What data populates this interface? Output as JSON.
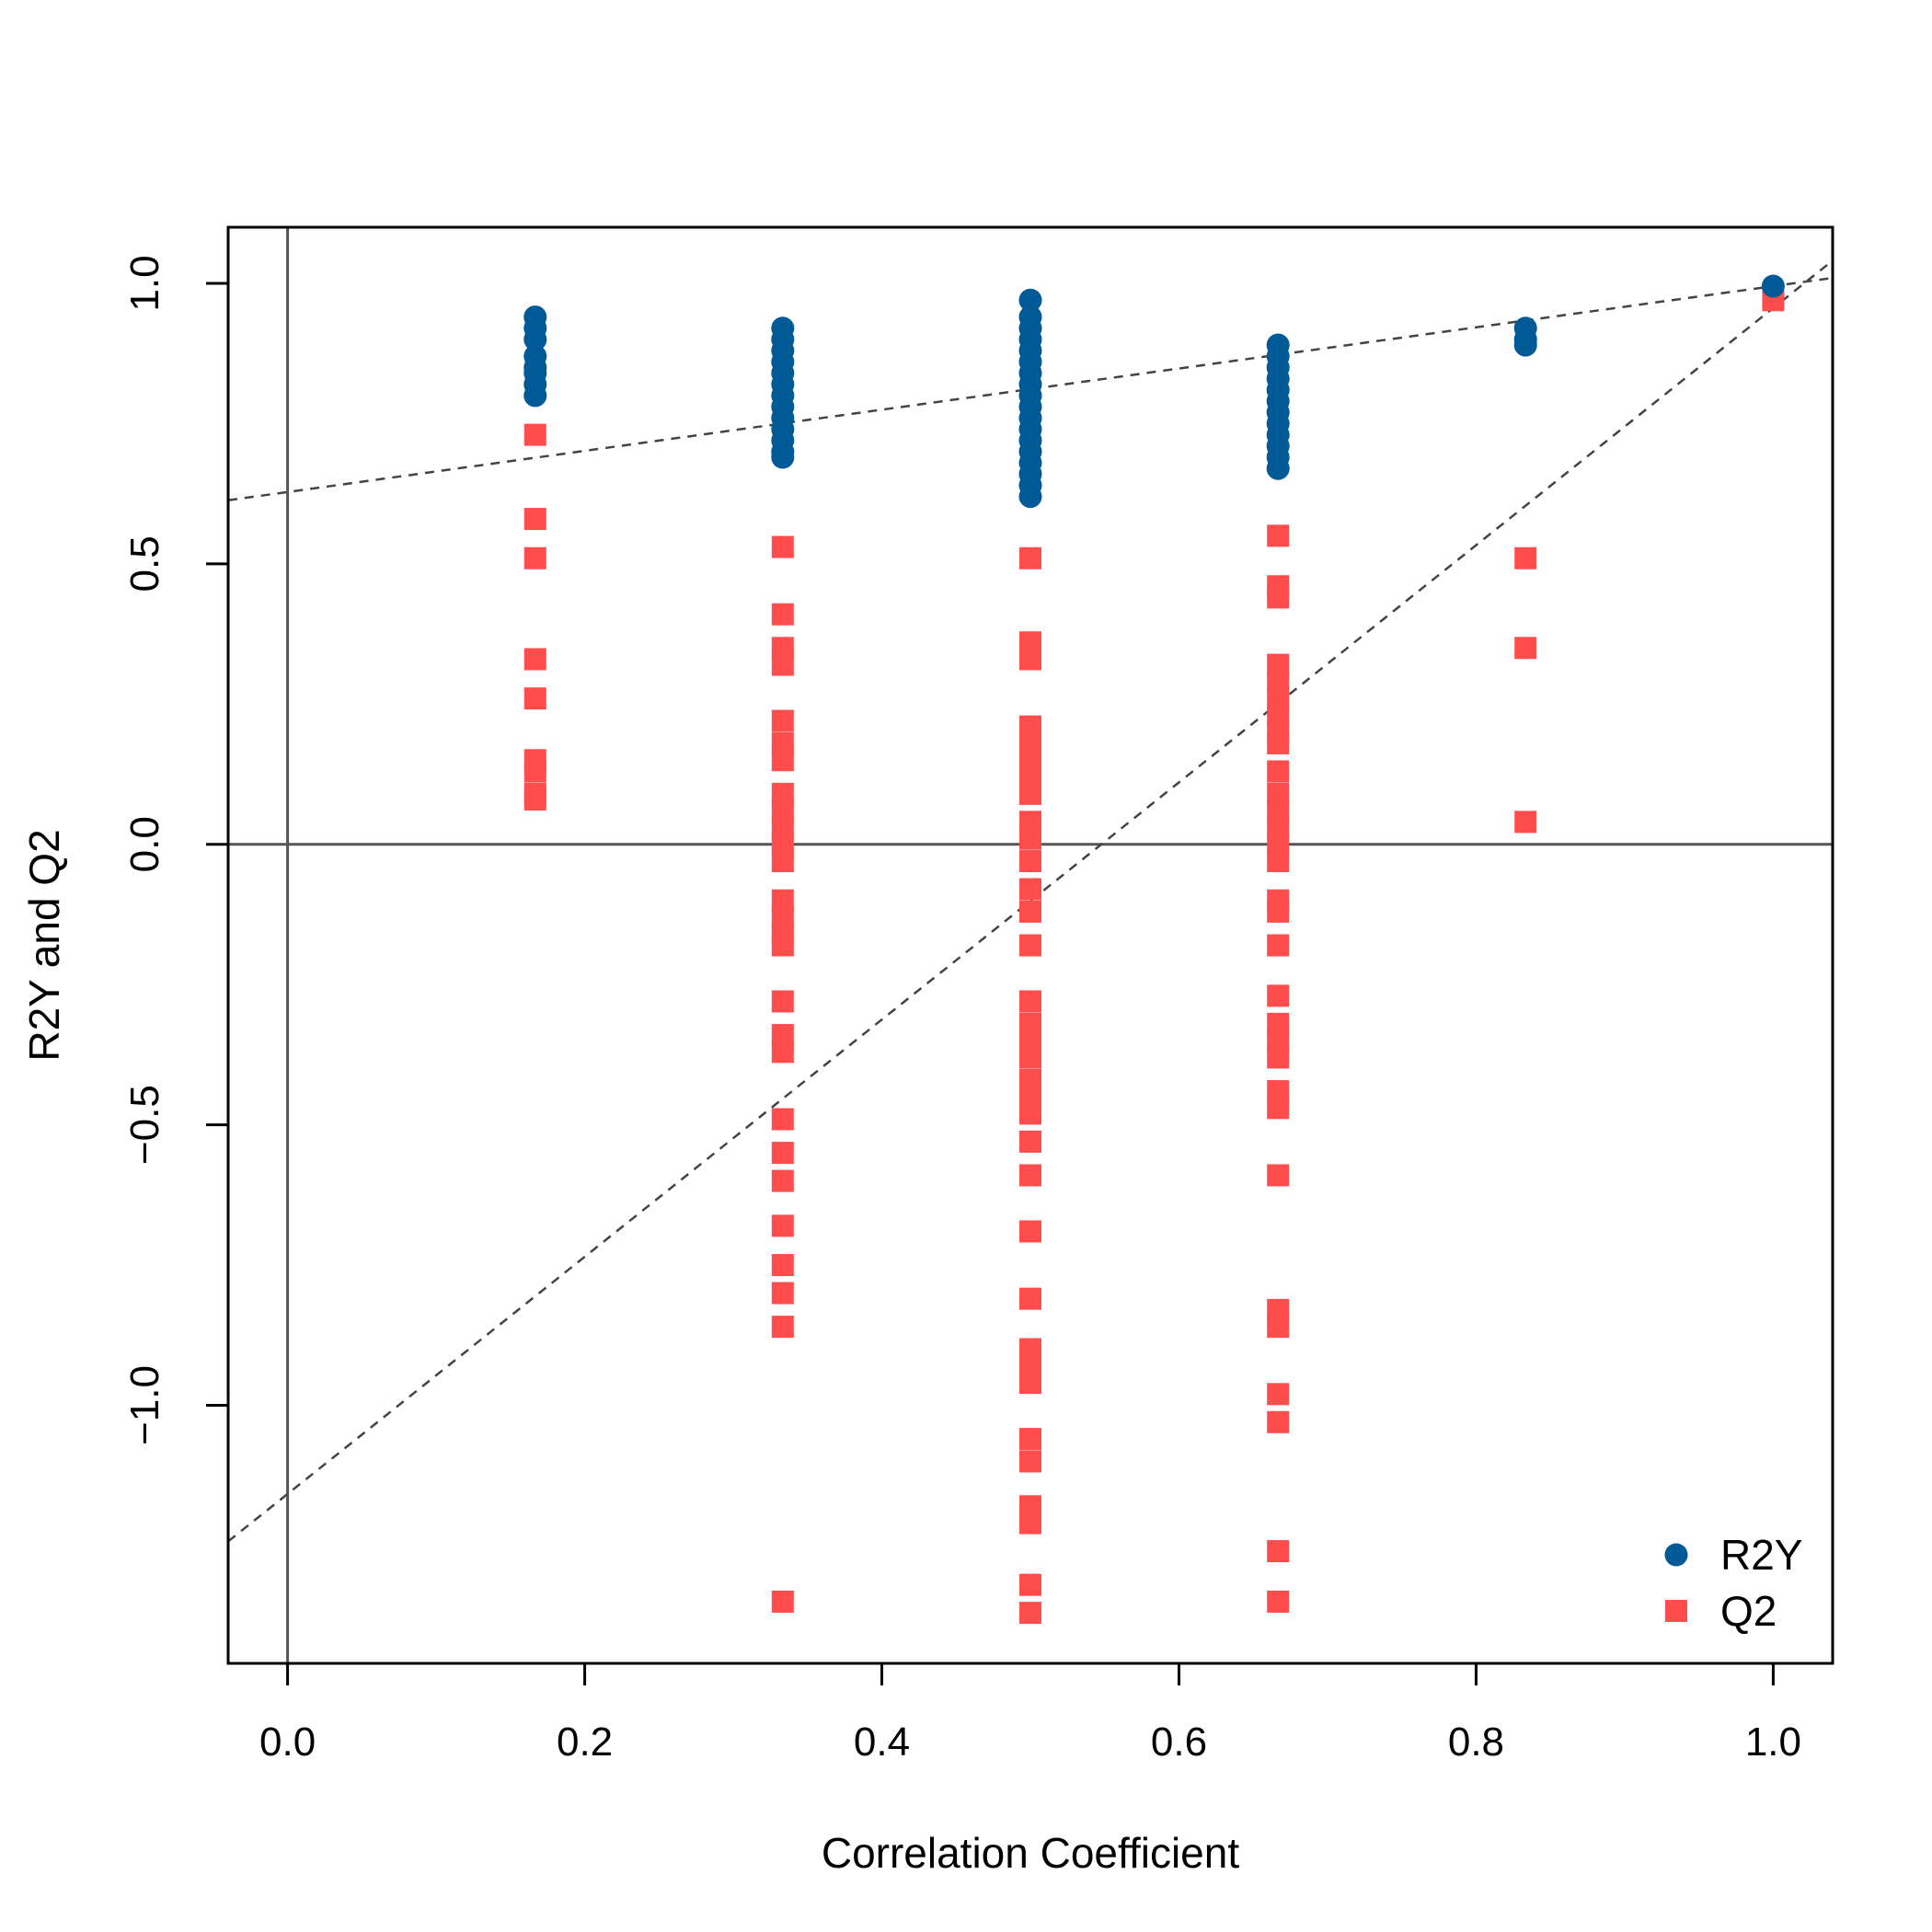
{
  "colors": {
    "r2y": "#005a96",
    "q2": "#ff4d4d",
    "axis": "#000000",
    "refline": "#555555",
    "regline": "#444444"
  },
  "chart_data": {
    "type": "scatter",
    "title": "",
    "xlabel": "Correlation Coefficient",
    "ylabel": "R2Y and Q2",
    "xlim": [
      -0.04,
      1.04
    ],
    "ylim": [
      -1.46,
      1.1
    ],
    "x_ticks": [
      0.0,
      0.2,
      0.4,
      0.6,
      0.8,
      1.0
    ],
    "x_tick_labels": [
      "0.0",
      "0.2",
      "0.4",
      "0.6",
      "0.8",
      "1.0"
    ],
    "y_ticks": [
      -1.0,
      -0.5,
      0.0,
      0.5,
      1.0
    ],
    "y_tick_labels": [
      "−1.0",
      "−0.5",
      "0.0",
      "0.5",
      "1.0"
    ],
    "grid": false,
    "legend_position": "bottom-right",
    "reference_lines": {
      "h": 0,
      "v": 0
    },
    "series": [
      {
        "name": "R2Y",
        "marker": "circle",
        "points": [
          [
            0.1667,
            0.94
          ],
          [
            0.1667,
            0.92
          ],
          [
            0.1667,
            0.9
          ],
          [
            0.1667,
            0.87
          ],
          [
            0.1667,
            0.85
          ],
          [
            0.1667,
            0.84
          ],
          [
            0.1667,
            0.82
          ],
          [
            0.1667,
            0.8
          ],
          [
            0.3333,
            0.92
          ],
          [
            0.3333,
            0.9
          ],
          [
            0.3333,
            0.88
          ],
          [
            0.3333,
            0.86
          ],
          [
            0.3333,
            0.84
          ],
          [
            0.3333,
            0.82
          ],
          [
            0.3333,
            0.8
          ],
          [
            0.3333,
            0.78
          ],
          [
            0.3333,
            0.76
          ],
          [
            0.3333,
            0.74
          ],
          [
            0.3333,
            0.72
          ],
          [
            0.3333,
            0.7
          ],
          [
            0.3333,
            0.69
          ],
          [
            0.5,
            0.97
          ],
          [
            0.5,
            0.94
          ],
          [
            0.5,
            0.92
          ],
          [
            0.5,
            0.9
          ],
          [
            0.5,
            0.88
          ],
          [
            0.5,
            0.86
          ],
          [
            0.5,
            0.84
          ],
          [
            0.5,
            0.82
          ],
          [
            0.5,
            0.8
          ],
          [
            0.5,
            0.78
          ],
          [
            0.5,
            0.76
          ],
          [
            0.5,
            0.74
          ],
          [
            0.5,
            0.72
          ],
          [
            0.5,
            0.7
          ],
          [
            0.5,
            0.68
          ],
          [
            0.5,
            0.66
          ],
          [
            0.5,
            0.64
          ],
          [
            0.5,
            0.62
          ],
          [
            0.6667,
            0.89
          ],
          [
            0.6667,
            0.87
          ],
          [
            0.6667,
            0.85
          ],
          [
            0.6667,
            0.83
          ],
          [
            0.6667,
            0.81
          ],
          [
            0.6667,
            0.79
          ],
          [
            0.6667,
            0.77
          ],
          [
            0.6667,
            0.75
          ],
          [
            0.6667,
            0.73
          ],
          [
            0.6667,
            0.71
          ],
          [
            0.6667,
            0.69
          ],
          [
            0.6667,
            0.67
          ],
          [
            0.8333,
            0.92
          ],
          [
            0.8333,
            0.9
          ],
          [
            0.8333,
            0.89
          ],
          [
            1.0,
            0.995
          ]
        ]
      },
      {
        "name": "Q2",
        "marker": "square",
        "points": [
          [
            0.1667,
            0.73
          ],
          [
            0.1667,
            0.58
          ],
          [
            0.1667,
            0.51
          ],
          [
            0.1667,
            0.33
          ],
          [
            0.1667,
            0.26
          ],
          [
            0.1667,
            0.15
          ],
          [
            0.1667,
            0.13
          ],
          [
            0.1667,
            0.09
          ],
          [
            0.1667,
            0.08
          ],
          [
            0.3333,
            0.53
          ],
          [
            0.3333,
            0.41
          ],
          [
            0.3333,
            0.35
          ],
          [
            0.3333,
            0.32
          ],
          [
            0.3333,
            0.22
          ],
          [
            0.3333,
            0.18
          ],
          [
            0.3333,
            0.15
          ],
          [
            0.3333,
            0.09
          ],
          [
            0.3333,
            0.06
          ],
          [
            0.3333,
            0.03
          ],
          [
            0.3333,
            0.0
          ],
          [
            0.3333,
            -0.03
          ],
          [
            0.3333,
            -0.1
          ],
          [
            0.3333,
            -0.13
          ],
          [
            0.3333,
            -0.16
          ],
          [
            0.3333,
            -0.18
          ],
          [
            0.3333,
            -0.28
          ],
          [
            0.3333,
            -0.34
          ],
          [
            0.3333,
            -0.37
          ],
          [
            0.3333,
            -0.49
          ],
          [
            0.3333,
            -0.55
          ],
          [
            0.3333,
            -0.6
          ],
          [
            0.3333,
            -0.68
          ],
          [
            0.3333,
            -0.75
          ],
          [
            0.3333,
            -0.8
          ],
          [
            0.3333,
            -0.86
          ],
          [
            0.3333,
            -1.35
          ],
          [
            0.5,
            0.51
          ],
          [
            0.5,
            0.36
          ],
          [
            0.5,
            0.33
          ],
          [
            0.5,
            0.21
          ],
          [
            0.5,
            0.18
          ],
          [
            0.5,
            0.15
          ],
          [
            0.5,
            0.12
          ],
          [
            0.5,
            0.09
          ],
          [
            0.5,
            0.04
          ],
          [
            0.5,
            0.01
          ],
          [
            0.5,
            -0.03
          ],
          [
            0.5,
            -0.08
          ],
          [
            0.5,
            -0.12
          ],
          [
            0.5,
            -0.18
          ],
          [
            0.5,
            -0.28
          ],
          [
            0.5,
            -0.32
          ],
          [
            0.5,
            -0.35
          ],
          [
            0.5,
            -0.38
          ],
          [
            0.5,
            -0.42
          ],
          [
            0.5,
            -0.45
          ],
          [
            0.5,
            -0.48
          ],
          [
            0.5,
            -0.53
          ],
          [
            0.5,
            -0.59
          ],
          [
            0.5,
            -0.69
          ],
          [
            0.5,
            -0.81
          ],
          [
            0.5,
            -0.9
          ],
          [
            0.5,
            -0.93
          ],
          [
            0.5,
            -0.96
          ],
          [
            0.5,
            -1.06
          ],
          [
            0.5,
            -1.1
          ],
          [
            0.5,
            -1.18
          ],
          [
            0.5,
            -1.21
          ],
          [
            0.5,
            -1.32
          ],
          [
            0.5,
            -1.37
          ],
          [
            0.6667,
            0.55
          ],
          [
            0.6667,
            0.46
          ],
          [
            0.6667,
            0.44
          ],
          [
            0.6667,
            0.32
          ],
          [
            0.6667,
            0.29
          ],
          [
            0.6667,
            0.26
          ],
          [
            0.6667,
            0.23
          ],
          [
            0.6667,
            0.2
          ],
          [
            0.6667,
            0.18
          ],
          [
            0.6667,
            0.13
          ],
          [
            0.6667,
            0.09
          ],
          [
            0.6667,
            0.06
          ],
          [
            0.6667,
            0.03
          ],
          [
            0.6667,
            0.0
          ],
          [
            0.6667,
            -0.03
          ],
          [
            0.6667,
            -0.1
          ],
          [
            0.6667,
            -0.12
          ],
          [
            0.6667,
            -0.18
          ],
          [
            0.6667,
            -0.27
          ],
          [
            0.6667,
            -0.32
          ],
          [
            0.6667,
            -0.35
          ],
          [
            0.6667,
            -0.38
          ],
          [
            0.6667,
            -0.44
          ],
          [
            0.6667,
            -0.47
          ],
          [
            0.6667,
            -0.59
          ],
          [
            0.6667,
            -0.83
          ],
          [
            0.6667,
            -0.86
          ],
          [
            0.6667,
            -0.98
          ],
          [
            0.6667,
            -1.03
          ],
          [
            0.6667,
            -1.26
          ],
          [
            0.6667,
            -1.35
          ],
          [
            0.8333,
            0.51
          ],
          [
            0.8333,
            0.35
          ],
          [
            0.8333,
            0.04
          ],
          [
            1.0,
            0.97
          ]
        ]
      }
    ],
    "regression_lines": [
      {
        "series": "R2Y",
        "intercept": 0.628,
        "slope": 0.367,
        "style": "dashed"
      },
      {
        "series": "Q2",
        "intercept": -1.158,
        "slope": 2.114,
        "style": "dashed"
      }
    ]
  }
}
